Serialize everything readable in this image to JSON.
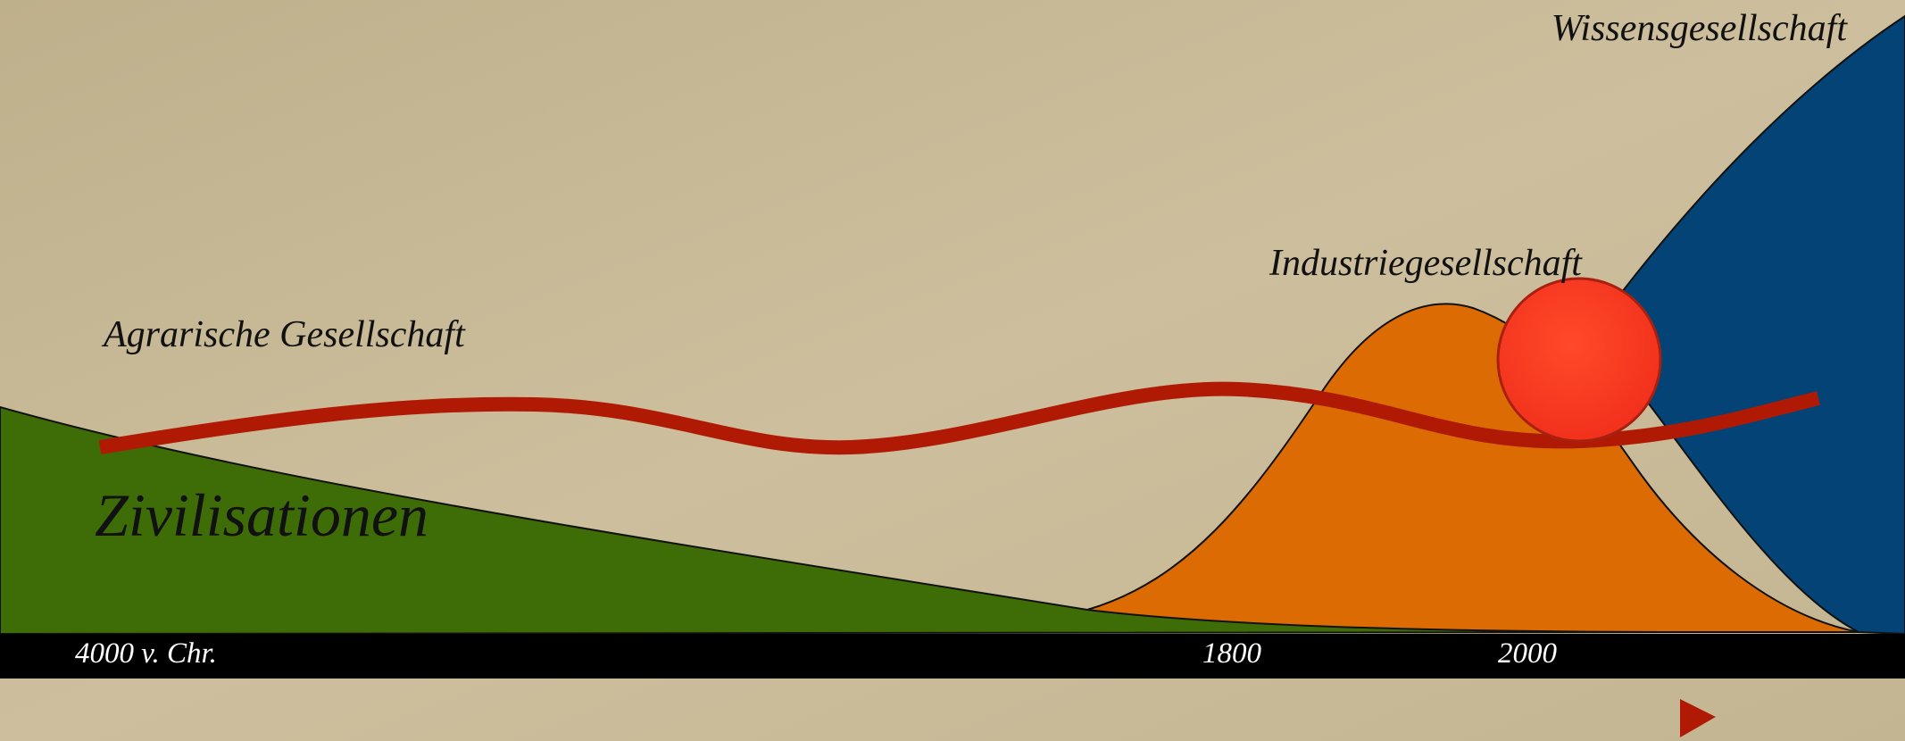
{
  "areas": [
    {
      "label": "Zivilisationen"
    },
    {
      "label": "Agrarische Gesellschaft"
    },
    {
      "label": "Industriegesellschaft"
    },
    {
      "label": "Wissensgesellschaft"
    }
  ],
  "timeline": [
    "4000 v. Chr.",
    "1800",
    "2000"
  ]
}
